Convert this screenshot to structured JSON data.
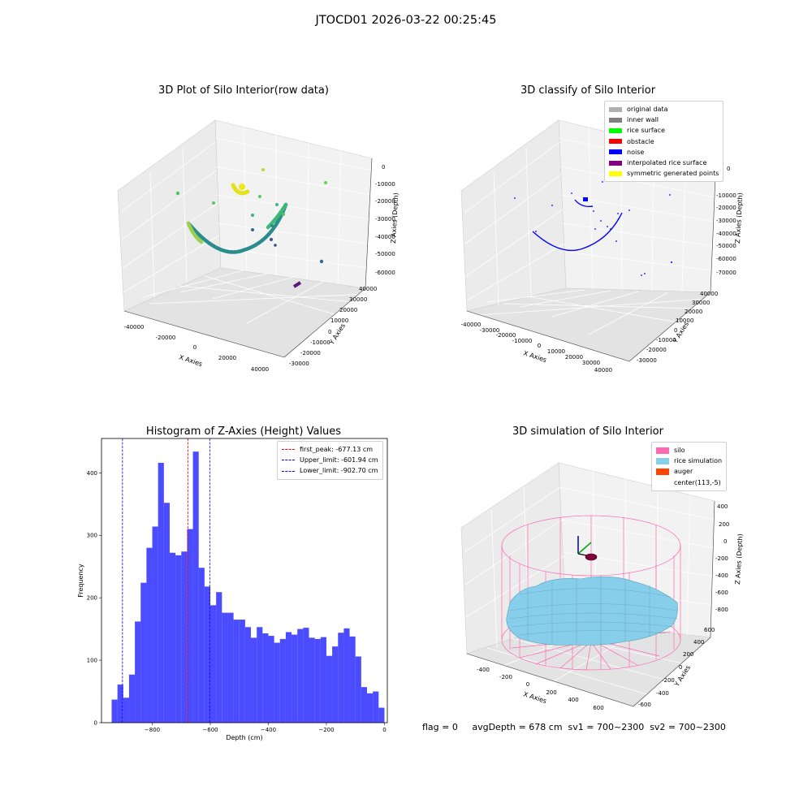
{
  "suptitle": "JTOCD01 2026-03-22 00:25:45",
  "panels": {
    "raw": {
      "title": "3D Plot of Silo Interior(row data)",
      "xlabel": "X Axies",
      "ylabel": "Y Axies",
      "zlabel": "Z Axies (Depth)",
      "x_ticks": [
        "-40000",
        "-20000",
        "0",
        "20000",
        "40000"
      ],
      "y_ticks": [
        "-30000",
        "-20000",
        "-10000",
        "0",
        "10000",
        "20000",
        "30000",
        "40000"
      ],
      "z_ticks": [
        "0",
        "-10000",
        "-20000",
        "-30000",
        "-40000",
        "-50000",
        "-60000"
      ]
    },
    "classify": {
      "title": "3D classify of Silo Interior",
      "xlabel": "X Axies",
      "ylabel": "Y Axies",
      "zlabel": "Z Axies (Depth)",
      "x_ticks": [
        "-40000",
        "-30000",
        "-20000",
        "-10000",
        "0",
        "10000",
        "20000",
        "30000",
        "40000"
      ],
      "y_ticks": [
        "-30000",
        "-20000",
        "-10000",
        "0",
        "10000",
        "20000",
        "30000",
        "40000"
      ],
      "z_ticks": [
        "0",
        "-10000",
        "-20000",
        "-30000",
        "-40000",
        "-50000",
        "-60000",
        "-70000"
      ],
      "legend": [
        {
          "label": "original data",
          "color": "#b0b0b0"
        },
        {
          "label": "inner wall",
          "color": "#808080"
        },
        {
          "label": "rice surface",
          "color": "#00ff00"
        },
        {
          "label": "obstacle",
          "color": "#ff0000"
        },
        {
          "label": "noise",
          "color": "#0000ff"
        },
        {
          "label": "interpolated rice surface",
          "color": "#800080"
        },
        {
          "label": "symmetric generated points",
          "color": "#ffff00"
        }
      ]
    },
    "simulation": {
      "title": "3D simulation of Silo Interior",
      "xlabel": "X Axies",
      "ylabel": "Y Axies",
      "zlabel": "Z Axies (Depth)",
      "x_ticks": [
        "-400",
        "-200",
        "0",
        "200",
        "400",
        "600"
      ],
      "y_ticks": [
        "-600",
        "-400",
        "-200",
        "0",
        "200",
        "400",
        "600"
      ],
      "z_ticks": [
        "400",
        "200",
        "0",
        "-200",
        "-400",
        "-600",
        "-800"
      ],
      "legend": [
        {
          "label": "silo",
          "color": "#ff69b4"
        },
        {
          "label": "rice simulation",
          "color": "#87ceeb"
        },
        {
          "label": "auger",
          "color": "#ff4500"
        },
        {
          "label": "center(113,-5)",
          "color": ""
        }
      ],
      "footer": "flag = 0     avgDepth = 678 cm  sv1 = 700~2300  sv2 = 700~2300"
    }
  },
  "chart_data": {
    "type": "bar",
    "title": "Histogram of Z-Axies (Height) Values",
    "xlabel": "Depth (cm)",
    "ylabel": "Frequency",
    "xlim": [
      -975,
      10
    ],
    "ylim": [
      0,
      455
    ],
    "x_ticks": [
      -800,
      -600,
      -400,
      -200,
      0
    ],
    "y_ticks": [
      0,
      100,
      200,
      300,
      400
    ],
    "bin_start": -940,
    "bin_width": 20,
    "values": [
      37,
      61,
      40,
      77,
      162,
      224,
      280,
      314,
      416,
      352,
      272,
      268,
      274,
      310,
      434,
      248,
      218,
      188,
      209,
      176,
      176,
      165,
      165,
      153,
      136,
      153,
      143,
      139,
      128,
      134,
      145,
      141,
      150,
      152,
      136,
      134,
      137,
      107,
      122,
      144,
      151,
      138,
      106,
      57,
      47,
      50,
      24
    ],
    "bar_color": "#0000ff",
    "lines": [
      {
        "label": "first_peak: -677.13 cm",
        "x": -677.13,
        "color": "#ff0000"
      },
      {
        "label": "Upper_limit: -601.94 cm",
        "x": -601.94,
        "color": "#0000ff"
      },
      {
        "label": "Lower_limit: -902.70 cm",
        "x": -902.7,
        "color": "#0000ff"
      }
    ],
    "legend_position": "upper right"
  }
}
